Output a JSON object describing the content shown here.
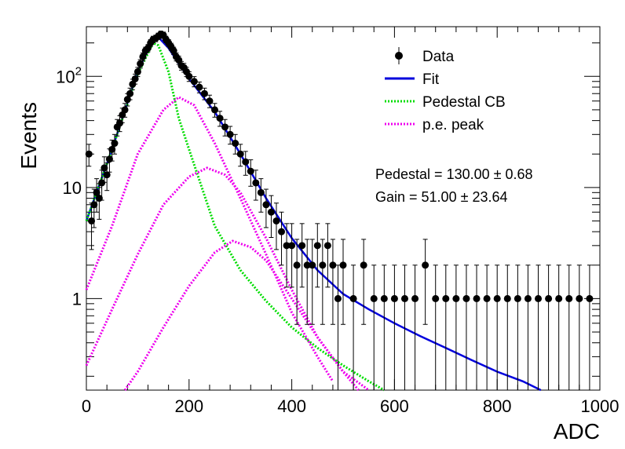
{
  "chart_data": {
    "type": "scatter",
    "xlabel": "ADC",
    "ylabel": "Events",
    "x_scale": "linear",
    "y_scale": "log",
    "xlim": [
      0,
      1000
    ],
    "ylim": [
      0.15,
      280
    ],
    "x_ticks": [
      0,
      200,
      400,
      600,
      800,
      1000
    ],
    "x_tick_labels": [
      "0",
      "200",
      "400",
      "600",
      "800",
      "1000"
    ],
    "y_ticks": [
      1,
      10,
      100
    ],
    "y_tick_labels": [
      "1",
      "10",
      "10²"
    ],
    "grid": false,
    "legend_position": "top-right",
    "legend": [
      {
        "label": "Data",
        "style": "marker-errorbar",
        "color": "#000000"
      },
      {
        "label": "Fit",
        "style": "solid",
        "color": "#0000dd"
      },
      {
        "label": "Pedestal CB",
        "style": "dotted",
        "color": "#00dd00"
      },
      {
        "label": "p.e. peak",
        "style": "dotted",
        "color": "#ee00ee"
      }
    ],
    "annotations": [
      "Pedestal = 130.00 ± 0.68",
      "Gain = 51.00 ± 23.64"
    ],
    "series": [
      {
        "name": "Data",
        "kind": "points-with-errorbars",
        "color": "#000000",
        "points": [
          [
            5,
            20
          ],
          [
            10,
            5
          ],
          [
            15,
            7
          ],
          [
            20,
            9
          ],
          [
            25,
            8
          ],
          [
            30,
            11
          ],
          [
            35,
            15
          ],
          [
            40,
            13
          ],
          [
            45,
            18
          ],
          [
            50,
            22
          ],
          [
            55,
            25
          ],
          [
            60,
            35
          ],
          [
            65,
            38
          ],
          [
            70,
            45
          ],
          [
            75,
            50
          ],
          [
            80,
            62
          ],
          [
            85,
            70
          ],
          [
            90,
            85
          ],
          [
            95,
            95
          ],
          [
            100,
            110
          ],
          [
            105,
            130
          ],
          [
            110,
            150
          ],
          [
            115,
            170
          ],
          [
            120,
            180
          ],
          [
            125,
            200
          ],
          [
            130,
            215
          ],
          [
            135,
            220
          ],
          [
            140,
            230
          ],
          [
            145,
            240
          ],
          [
            150,
            235
          ],
          [
            155,
            215
          ],
          [
            160,
            200
          ],
          [
            165,
            185
          ],
          [
            170,
            170
          ],
          [
            175,
            150
          ],
          [
            180,
            140
          ],
          [
            185,
            125
          ],
          [
            190,
            120
          ],
          [
            195,
            110
          ],
          [
            200,
            100
          ],
          [
            210,
            90
          ],
          [
            220,
            80
          ],
          [
            230,
            70
          ],
          [
            240,
            60
          ],
          [
            250,
            50
          ],
          [
            260,
            42
          ],
          [
            270,
            35
          ],
          [
            280,
            30
          ],
          [
            290,
            25
          ],
          [
            300,
            20
          ],
          [
            310,
            17
          ],
          [
            320,
            14
          ],
          [
            330,
            11
          ],
          [
            340,
            9
          ],
          [
            350,
            7
          ],
          [
            360,
            6
          ],
          [
            370,
            5
          ],
          [
            380,
            4
          ],
          [
            390,
            3
          ],
          [
            400,
            3
          ],
          [
            410,
            2
          ],
          [
            420,
            3
          ],
          [
            430,
            2
          ],
          [
            440,
            2
          ],
          [
            450,
            3
          ],
          [
            460,
            2
          ],
          [
            470,
            3
          ],
          [
            480,
            2
          ],
          [
            490,
            1
          ],
          [
            500,
            2
          ],
          [
            520,
            1
          ],
          [
            540,
            2
          ],
          [
            560,
            1
          ],
          [
            580,
            1
          ],
          [
            600,
            1
          ],
          [
            620,
            1
          ],
          [
            640,
            1
          ],
          [
            660,
            2
          ],
          [
            680,
            1
          ],
          [
            700,
            1
          ],
          [
            720,
            1
          ],
          [
            740,
            1
          ],
          [
            760,
            1
          ],
          [
            780,
            1
          ],
          [
            800,
            1
          ],
          [
            820,
            1
          ],
          [
            840,
            1
          ],
          [
            860,
            1
          ],
          [
            880,
            1
          ],
          [
            900,
            1
          ],
          [
            920,
            1
          ],
          [
            940,
            1
          ],
          [
            960,
            1
          ],
          [
            980,
            1
          ]
        ]
      },
      {
        "name": "Fit",
        "kind": "line",
        "color": "#0000dd",
        "points": [
          [
            0,
            5
          ],
          [
            50,
            22
          ],
          [
            100,
            110
          ],
          [
            130,
            215
          ],
          [
            140,
            225
          ],
          [
            160,
            180
          ],
          [
            200,
            95
          ],
          [
            250,
            48
          ],
          [
            300,
            20
          ],
          [
            350,
            8
          ],
          [
            400,
            3.5
          ],
          [
            450,
            1.8
          ],
          [
            500,
            1.1
          ],
          [
            550,
            0.8
          ],
          [
            600,
            0.6
          ],
          [
            650,
            0.46
          ],
          [
            700,
            0.36
          ],
          [
            750,
            0.28
          ],
          [
            800,
            0.22
          ],
          [
            850,
            0.18
          ],
          [
            885,
            0.15
          ]
        ]
      },
      {
        "name": "Pedestal CB",
        "kind": "line",
        "color": "#00dd00",
        "points": [
          [
            0,
            5
          ],
          [
            50,
            22
          ],
          [
            100,
            105
          ],
          [
            130,
            200
          ],
          [
            140,
            190
          ],
          [
            160,
            110
          ],
          [
            180,
            42
          ],
          [
            200,
            22
          ],
          [
            250,
            4.5
          ],
          [
            300,
            1.8
          ],
          [
            350,
            0.95
          ],
          [
            400,
            0.55
          ],
          [
            450,
            0.36
          ],
          [
            500,
            0.25
          ],
          [
            550,
            0.18
          ],
          [
            580,
            0.15
          ]
        ]
      },
      {
        "name": "p.e. peak 1",
        "kind": "line",
        "color": "#ee00ee",
        "points": [
          [
            0,
            1.2
          ],
          [
            50,
            4.5
          ],
          [
            100,
            20
          ],
          [
            150,
            50
          ],
          [
            180,
            65
          ],
          [
            210,
            55
          ],
          [
            250,
            25
          ],
          [
            300,
            8
          ],
          [
            350,
            2.5
          ],
          [
            400,
            0.75
          ],
          [
            450,
            0.3
          ],
          [
            480,
            0.18
          ]
        ]
      },
      {
        "name": "p.e. peak 2",
        "kind": "line",
        "color": "#ee00ee",
        "points": [
          [
            0,
            0.25
          ],
          [
            50,
            0.8
          ],
          [
            100,
            2.5
          ],
          [
            150,
            7
          ],
          [
            200,
            12.5
          ],
          [
            235,
            15
          ],
          [
            270,
            13
          ],
          [
            300,
            9
          ],
          [
            350,
            3.5
          ],
          [
            400,
            1.2
          ],
          [
            450,
            0.45
          ],
          [
            500,
            0.22
          ],
          [
            530,
            0.15
          ]
        ]
      },
      {
        "name": "p.e. peak 3",
        "kind": "line",
        "color": "#ee00ee",
        "points": [
          [
            75,
            0.15
          ],
          [
            100,
            0.22
          ],
          [
            150,
            0.55
          ],
          [
            200,
            1.3
          ],
          [
            250,
            2.6
          ],
          [
            285,
            3.3
          ],
          [
            320,
            2.9
          ],
          [
            350,
            2.2
          ],
          [
            400,
            1.0
          ],
          [
            450,
            0.45
          ],
          [
            500,
            0.22
          ],
          [
            550,
            0.15
          ]
        ]
      }
    ]
  }
}
